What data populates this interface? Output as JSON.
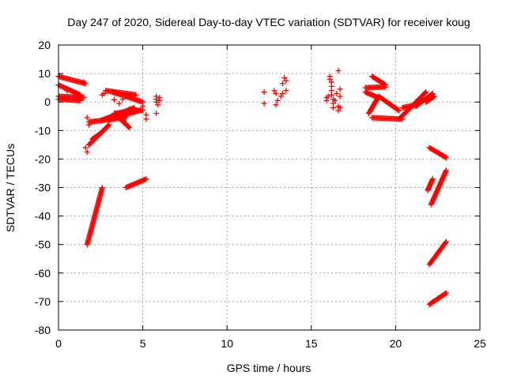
{
  "chart_data": {
    "type": "scatter",
    "title": "Day 247 of 2020, Sidereal Day-to-day VTEC variation (SDTVAR) for receiver koug",
    "xlabel": "GPS time / hours",
    "ylabel": "SDTVAR / TECUs",
    "xlim": [
      0,
      25
    ],
    "ylim": [
      -80,
      20
    ],
    "xticks": [
      "0",
      "5",
      "10",
      "15",
      "20",
      "25"
    ],
    "yticks": [
      "20",
      "10",
      "0",
      "-10",
      "-20",
      "-30",
      "-40",
      "-50",
      "-60",
      "-70",
      "-80"
    ],
    "grid": true,
    "marker": "plus",
    "color": "#ff0000",
    "series": [
      {
        "segments": [
          [
            [
              0.0,
              9.0
            ],
            [
              1.6,
              6.5
            ]
          ],
          [
            [
              0.0,
              6.0
            ],
            [
              1.3,
              2.5
            ]
          ],
          [
            [
              0.0,
              2.0
            ],
            [
              1.5,
              1.6
            ]
          ],
          [
            [
              0.0,
              1.0
            ],
            [
              1.3,
              0.5
            ]
          ],
          [
            [
              1.7,
              -50.0
            ],
            [
              2.6,
              -30.0
            ]
          ],
          [
            [
              1.8,
              -7.0
            ],
            [
              4.0,
              -5.5
            ]
          ],
          [
            [
              1.8,
              -15.0
            ],
            [
              3.0,
              -8.0
            ]
          ],
          [
            [
              2.0,
              -13.0
            ],
            [
              2.5,
              -11.0
            ]
          ],
          [
            [
              2.5,
              -6.5
            ],
            [
              4.5,
              -2.0
            ]
          ],
          [
            [
              2.8,
              4.0
            ],
            [
              4.6,
              2.5
            ]
          ],
          [
            [
              3.0,
              -6.0
            ],
            [
              4.8,
              -3.0
            ]
          ],
          [
            [
              3.2,
              3.5
            ],
            [
              5.0,
              0.0
            ]
          ],
          [
            [
              3.3,
              -4.0
            ],
            [
              5.0,
              -2.8
            ]
          ],
          [
            [
              3.5,
              -5.0
            ],
            [
              4.2,
              -9.0
            ]
          ],
          [
            [
              4.0,
              -30.0
            ],
            [
              5.2,
              -27.0
            ]
          ],
          [
            [
              18.2,
              5.0
            ],
            [
              19.4,
              5.3
            ]
          ],
          [
            [
              18.2,
              3.5
            ],
            [
              19.0,
              1.5
            ]
          ],
          [
            [
              18.4,
              -4.0
            ],
            [
              19.0,
              2.0
            ]
          ],
          [
            [
              18.6,
              -5.5
            ],
            [
              20.4,
              -6.0
            ]
          ],
          [
            [
              19.0,
              2.0
            ],
            [
              20.2,
              -3.0
            ]
          ],
          [
            [
              18.6,
              9.0
            ],
            [
              19.4,
              6.0
            ]
          ],
          [
            [
              20.2,
              -6.0
            ],
            [
              21.8,
              3.5
            ]
          ],
          [
            [
              20.4,
              -2.0
            ],
            [
              21.2,
              -1.0
            ]
          ],
          [
            [
              21.2,
              -1.5
            ],
            [
              22.2,
              3.0
            ]
          ],
          [
            [
              21.8,
              0.0
            ],
            [
              22.3,
              2.0
            ]
          ],
          [
            [
              22.0,
              -16.0
            ],
            [
              23.0,
              -19.5
            ]
          ],
          [
            [
              21.9,
              -31.0
            ],
            [
              22.2,
              -27.0
            ]
          ],
          [
            [
              22.1,
              -36.0
            ],
            [
              23.0,
              -24.0
            ]
          ],
          [
            [
              22.0,
              -57.0
            ],
            [
              23.0,
              -49.0
            ]
          ],
          [
            [
              22.0,
              -71.0
            ],
            [
              23.0,
              -67.0
            ]
          ]
        ],
        "points": [
          [
            0.5,
            4.0
          ],
          [
            1.1,
            2.2
          ],
          [
            1.5,
            7.0
          ],
          [
            1.6,
            -16.0
          ],
          [
            1.7,
            -17.5
          ],
          [
            1.7,
            -5.5
          ],
          [
            1.8,
            -8.0
          ],
          [
            2.6,
            2.5
          ],
          [
            2.7,
            3.0
          ],
          [
            3.3,
            0.8
          ],
          [
            3.6,
            -0.5
          ],
          [
            3.8,
            1.0
          ],
          [
            4.0,
            -7.5
          ],
          [
            4.2,
            -2.5
          ],
          [
            5.0,
            -1.5
          ],
          [
            5.2,
            -6.0
          ],
          [
            5.2,
            -4.5
          ],
          [
            5.8,
            2.0
          ],
          [
            5.8,
            1.0
          ],
          [
            5.8,
            0.0
          ],
          [
            5.9,
            -1.0
          ],
          [
            5.8,
            -4.0
          ],
          [
            6.0,
            0.5
          ],
          [
            6.0,
            1.5
          ],
          [
            12.2,
            3.5
          ],
          [
            12.2,
            -0.5
          ],
          [
            12.8,
            4.0
          ],
          [
            12.9,
            3.0
          ],
          [
            12.9,
            -1.0
          ],
          [
            13.0,
            0.5
          ],
          [
            13.2,
            2.0
          ],
          [
            13.3,
            6.5
          ],
          [
            13.4,
            8.5
          ],
          [
            13.5,
            7.5
          ],
          [
            13.5,
            4.0
          ],
          [
            13.3,
            3.0
          ],
          [
            15.9,
            1.5
          ],
          [
            15.9,
            0.5
          ],
          [
            16.0,
            2.0
          ],
          [
            16.1,
            9.0
          ],
          [
            16.1,
            8.0
          ],
          [
            16.2,
            7.0
          ],
          [
            16.2,
            5.5
          ],
          [
            16.2,
            4.0
          ],
          [
            16.2,
            2.5
          ],
          [
            16.3,
            1.0
          ],
          [
            16.3,
            -0.5
          ],
          [
            16.3,
            -2.0
          ],
          [
            16.4,
            0.5
          ],
          [
            16.5,
            3.0
          ],
          [
            16.6,
            11.0
          ],
          [
            16.6,
            -1.5
          ],
          [
            16.6,
            -3.0
          ],
          [
            16.7,
            4.5
          ],
          [
            16.7,
            2.0
          ],
          [
            16.7,
            -2.0
          ]
        ]
      }
    ]
  }
}
